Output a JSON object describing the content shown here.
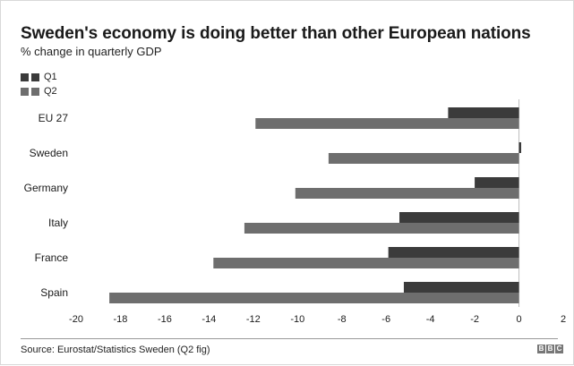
{
  "title": "Sweden's economy is doing better than other European nations",
  "subtitle": "% change in quarterly GDP",
  "source": "Source: Eurostat/Statistics Sweden (Q2 fig)",
  "logo": [
    "B",
    "B",
    "C"
  ],
  "colors": {
    "q1": "#3b3b3b",
    "q2": "#6e6e6e",
    "axis": "#bdbdbd",
    "text": "#1a1a1a"
  },
  "chart_data": {
    "type": "bar",
    "orientation": "horizontal",
    "categories": [
      "EU 27",
      "Sweden",
      "Germany",
      "Italy",
      "France",
      "Spain"
    ],
    "series": [
      {
        "name": "Q1",
        "values": [
          -3.2,
          0.1,
          -2.0,
          -5.4,
          -5.9,
          -5.2
        ]
      },
      {
        "name": "Q2",
        "values": [
          -11.9,
          -8.6,
          -10.1,
          -12.4,
          -13.8,
          -18.5
        ]
      }
    ],
    "xlim": [
      -20,
      2
    ],
    "xticks": [
      -20,
      -18,
      -16,
      -14,
      -12,
      -10,
      -8,
      -6,
      -4,
      -2,
      0,
      2
    ],
    "legend_position": "top-left",
    "grid": false
  }
}
